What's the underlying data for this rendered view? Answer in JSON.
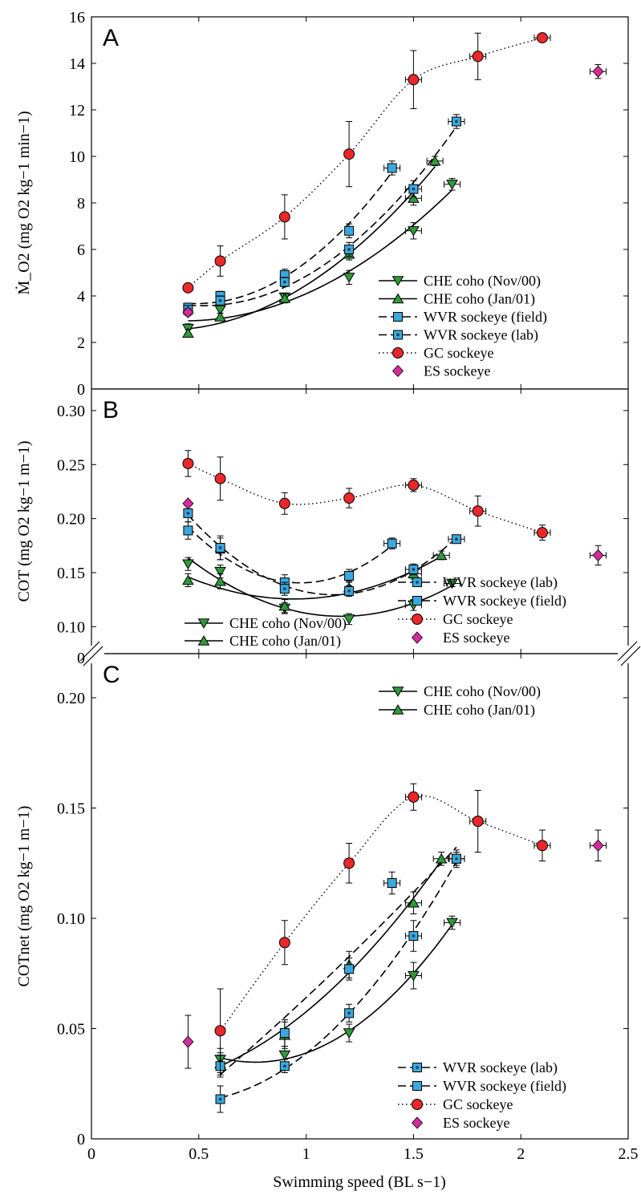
{
  "chart_data": [
    {
      "panel": "A",
      "type": "line",
      "ylabel": "Ṁ_O2 (mg O2 kg−1 min−1)",
      "ylim": [
        0,
        16
      ],
      "yticks": [
        "0",
        "2",
        "4",
        "6",
        "8",
        "10",
        "12",
        "14",
        "16"
      ],
      "xlim": [
        0,
        2.5
      ],
      "grid": false,
      "legend_placement": "bottom-right",
      "series": [
        {
          "name": "CHE coho (Nov/00)",
          "key": "che_nov",
          "x": [
            0.45,
            0.6,
            0.9,
            1.2,
            1.5,
            1.68
          ],
          "y": [
            2.6,
            3.4,
            3.95,
            4.8,
            6.8,
            8.8
          ],
          "err": [
            0.2,
            0.15,
            0.15,
            0.3,
            0.35,
            0.25
          ]
        },
        {
          "name": "CHE coho (Jan/01)",
          "key": "che_jan",
          "x": [
            0.45,
            0.6,
            0.9,
            1.2,
            1.5,
            1.6
          ],
          "y": [
            2.4,
            3.1,
            3.9,
            5.8,
            8.2,
            9.8
          ],
          "err": [
            0.15,
            0.15,
            0.2,
            0.25,
            0.3,
            0.2
          ]
        },
        {
          "name": "WVR sockeye (field)",
          "key": "wvr_field",
          "x": [
            0.45,
            0.6,
            0.9,
            1.2,
            1.4
          ],
          "y": [
            3.5,
            4.0,
            4.9,
            6.8,
            9.5
          ],
          "err": [
            0.15,
            0.2,
            0.25,
            0.3,
            0.3
          ]
        },
        {
          "name": "WVR sockeye (lab)",
          "key": "wvr_lab",
          "x": [
            0.45,
            0.6,
            0.9,
            1.2,
            1.5,
            1.7
          ],
          "y": [
            3.4,
            3.8,
            4.6,
            6.0,
            8.6,
            11.5
          ],
          "err": [
            0.15,
            0.2,
            0.2,
            0.3,
            0.35,
            0.3
          ]
        },
        {
          "name": "GC sockeye",
          "key": "gc",
          "x": [
            0.45,
            0.6,
            0.9,
            1.2,
            1.5,
            1.8,
            2.1
          ],
          "y": [
            4.35,
            5.5,
            7.4,
            10.1,
            13.3,
            14.3,
            15.1
          ],
          "err": [
            0.1,
            0.65,
            0.95,
            1.4,
            1.25,
            1.0,
            0.1
          ]
        },
        {
          "name": "ES sockeye",
          "key": "es",
          "x": [
            0.45,
            2.36
          ],
          "y": [
            3.3,
            13.65
          ],
          "err": [
            0.15,
            0.3
          ]
        }
      ]
    },
    {
      "panel": "B",
      "type": "line",
      "ylabel": "COT (mg O2 kg−1 m−1)",
      "ylim": [
        0.075,
        0.32
      ],
      "yticks": [
        "0.10",
        "0.15",
        "0.20",
        "0.25",
        "0.30"
      ],
      "y_break_below": "0.10",
      "xlim": [
        0,
        2.5
      ],
      "grid": false,
      "legend_placement": "bottom",
      "series": [
        {
          "name": "CHE coho (Nov/00)",
          "key": "che_nov",
          "x": [
            0.45,
            0.6,
            0.9,
            1.2,
            1.5,
            1.68
          ],
          "y": [
            0.158,
            0.151,
            0.117,
            0.107,
            0.12,
            0.14
          ],
          "err": [
            0.006,
            0.006,
            0.005,
            0.005,
            0.005,
            0.003
          ]
        },
        {
          "name": "CHE coho (Jan/01)",
          "key": "che_jan",
          "x": [
            0.45,
            0.6,
            0.9,
            1.2,
            1.5,
            1.63
          ],
          "y": [
            0.143,
            0.142,
            0.119,
            0.136,
            0.149,
            0.166
          ],
          "err": [
            0.006,
            0.007,
            0.006,
            0.006,
            0.005,
            0.004
          ]
        },
        {
          "name": "WVR sockeye (field)",
          "key": "wvr_field",
          "x": [
            0.45,
            0.6,
            0.9,
            1.2,
            1.4
          ],
          "y": [
            0.189,
            0.172,
            0.141,
            0.147,
            0.177
          ],
          "err": [
            0.008,
            0.01,
            0.007,
            0.006,
            0.005
          ]
        },
        {
          "name": "WVR sockeye (lab)",
          "key": "wvr_lab",
          "x": [
            0.45,
            0.6,
            0.9,
            1.2,
            1.5,
            1.7
          ],
          "y": [
            0.205,
            0.173,
            0.135,
            0.133,
            0.153,
            0.181
          ],
          "err": [
            0.008,
            0.011,
            0.006,
            0.005,
            0.005,
            0.003
          ]
        },
        {
          "name": "GC sockeye",
          "key": "gc",
          "x": [
            0.45,
            0.6,
            0.9,
            1.2,
            1.5,
            1.8,
            2.1
          ],
          "y": [
            0.251,
            0.237,
            0.214,
            0.219,
            0.231,
            0.207,
            0.187
          ],
          "err": [
            0.012,
            0.02,
            0.01,
            0.009,
            0.006,
            0.014,
            0.007
          ]
        },
        {
          "name": "ES sockeye",
          "key": "es",
          "x": [
            0.45,
            2.36
          ],
          "y": [
            0.214,
            0.166
          ],
          "err": [
            0.0,
            0.009
          ]
        }
      ]
    },
    {
      "panel": "C",
      "type": "line",
      "ylabel": "COTnet (mg O2 kg−1 m−1)",
      "ylim": [
        0,
        0.22
      ],
      "yticks": [
        "0",
        "0.05",
        "0.10",
        "0.15",
        "0.20"
      ],
      "xlim": [
        0,
        2.5
      ],
      "xticks": [
        "0",
        "0.5",
        "1",
        "1.5",
        "2",
        "2.5"
      ],
      "xlabel": "Swimming speed (BL s−1)",
      "grid": false,
      "legend_placement": "top-right and bottom-right",
      "series": [
        {
          "name": "CHE coho (Nov/00)",
          "key": "che_nov",
          "x": [
            0.6,
            0.9,
            1.2,
            1.5,
            1.68
          ],
          "y": [
            0.036,
            0.038,
            0.048,
            0.074,
            0.098
          ],
          "err": [
            0.005,
            0.004,
            0.004,
            0.006,
            0.003
          ]
        },
        {
          "name": "CHE coho (Jan/01)",
          "key": "che_jan",
          "x": [
            0.6,
            0.9,
            1.2,
            1.5,
            1.63
          ],
          "y": [
            0.034,
            0.047,
            0.079,
            0.107,
            0.127
          ],
          "err": [
            0.005,
            0.006,
            0.006,
            0.005,
            0.003
          ]
        },
        {
          "name": "WVR sockeye (field)",
          "key": "wvr_field",
          "x": [
            0.6,
            0.9,
            1.2,
            1.4,
            1.7
          ],
          "y": [
            0.033,
            0.048,
            0.077,
            0.116,
            0.127
          ],
          "err": [
            0.005,
            0.006,
            0.005,
            0.005,
            0.004
          ]
        },
        {
          "name": "WVR sockeye (lab)",
          "key": "wvr_lab",
          "x": [
            0.6,
            0.9,
            1.2,
            1.5,
            1.7
          ],
          "y": [
            0.018,
            0.033,
            0.057,
            0.092,
            0.127
          ],
          "err": [
            0.006,
            0.003,
            0.004,
            0.007,
            0.003
          ]
        },
        {
          "name": "GC sockeye",
          "key": "gc",
          "x": [
            0.6,
            0.9,
            1.2,
            1.5,
            1.8,
            2.1
          ],
          "y": [
            0.049,
            0.089,
            0.125,
            0.155,
            0.144,
            0.133
          ],
          "err": [
            0.019,
            0.01,
            0.009,
            0.006,
            0.014,
            0.007
          ]
        },
        {
          "name": "ES sockeye",
          "key": "es",
          "x": [
            0.45,
            2.36
          ],
          "y": [
            0.044,
            0.133
          ],
          "err": [
            0.012,
            0.007
          ]
        }
      ]
    }
  ],
  "legends": {
    "A": [
      "CHE coho (Nov/00)",
      "CHE coho (Jan/01)",
      "WVR sockeye (field)",
      "WVR sockeye (lab)",
      "GC sockeye",
      "ES sockeye"
    ],
    "B_right": [
      "WVR sockeye (lab)",
      "WVR sockeye (field)",
      "GC sockeye",
      "ES sockeye"
    ],
    "B_left": [
      "CHE coho (Nov/00)",
      "CHE coho (Jan/01)"
    ],
    "C_top": [
      "CHE coho (Nov/00)",
      "CHE coho (Jan/01)"
    ],
    "C_bottom": [
      "WVR sockeye (lab)",
      "WVR sockeye (field)",
      "GC sockeye",
      "ES sockeye"
    ]
  },
  "colors": {
    "green": "#2f9a3c",
    "blue": "#3aa8dc",
    "red": "#e8282a",
    "magenta": "#d42b9b",
    "line": "#000000"
  }
}
